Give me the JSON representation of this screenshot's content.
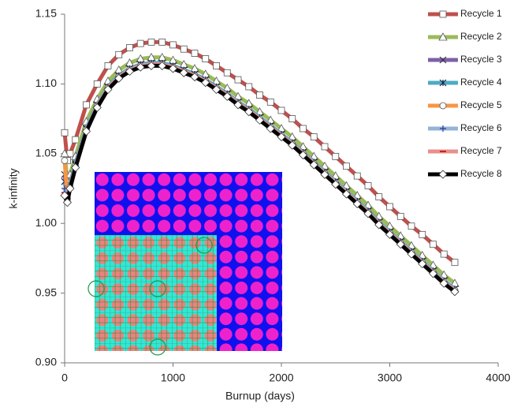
{
  "chart_data": {
    "type": "line",
    "xlabel": "Burnup (days)",
    "ylabel": "k-infinity",
    "x": [
      0,
      25,
      50,
      100,
      200,
      300,
      400,
      500,
      600,
      700,
      800,
      900,
      1000,
      1100,
      1200,
      1300,
      1400,
      1500,
      1600,
      1700,
      1800,
      1900,
      2000,
      2100,
      2200,
      2300,
      2400,
      2500,
      2600,
      2700,
      2800,
      2900,
      3000,
      3100,
      3200,
      3300,
      3400,
      3500,
      3600
    ],
    "xlim": [
      0,
      4000
    ],
    "xticks": [
      0,
      1000,
      2000,
      3000,
      4000
    ],
    "ylim": [
      0.9,
      1.15
    ],
    "yticks": [
      {
        "value": 0.9,
        "label": "0.90"
      },
      0.95,
      {
        "value": 1.0,
        "label": "1.00"
      },
      1.05,
      {
        "value": 1.1,
        "label": "1.10"
      },
      1.15
    ],
    "grid": false,
    "legend": "right",
    "series": [
      {
        "name": "Recycle 1",
        "color": "#c0504d",
        "marker": "square",
        "values": [
          1.065,
          1.045,
          1.05,
          1.06,
          1.085,
          1.1,
          1.113,
          1.121,
          1.126,
          1.129,
          1.13,
          1.13,
          1.128,
          1.125,
          1.122,
          1.118,
          1.113,
          1.108,
          1.103,
          1.098,
          1.092,
          1.087,
          1.081,
          1.075,
          1.068,
          1.062,
          1.055,
          1.048,
          1.041,
          1.034,
          1.027,
          1.019,
          1.012,
          1.005,
          0.998,
          0.992,
          0.985,
          0.978,
          0.972
        ]
      },
      {
        "name": "Recycle 2",
        "color": "#9bbb59",
        "marker": "triangle",
        "values": [
          1.05,
          1.03,
          1.035,
          1.048,
          1.073,
          1.089,
          1.102,
          1.11,
          1.115,
          1.118,
          1.119,
          1.119,
          1.117,
          1.114,
          1.111,
          1.107,
          1.102,
          1.097,
          1.091,
          1.086,
          1.08,
          1.074,
          1.068,
          1.062,
          1.055,
          1.048,
          1.041,
          1.034,
          1.027,
          1.02,
          1.013,
          1.005,
          0.998,
          0.991,
          0.984,
          0.977,
          0.97,
          0.963,
          0.957
        ]
      },
      {
        "name": "Recycle 3",
        "color": "#7f5fa8",
        "marker": "x",
        "values": [
          1.035,
          1.02,
          1.028,
          1.043,
          1.068,
          1.085,
          1.098,
          1.106,
          1.111,
          1.114,
          1.115,
          1.115,
          1.113,
          1.11,
          1.107,
          1.103,
          1.098,
          1.093,
          1.087,
          1.082,
          1.076,
          1.07,
          1.064,
          1.058,
          1.051,
          1.044,
          1.037,
          1.03,
          1.023,
          1.016,
          1.009,
          1.001,
          0.994,
          0.987,
          0.98,
          0.973,
          0.966,
          0.959,
          0.953
        ]
      },
      {
        "name": "Recycle 4",
        "color": "#4bacc6",
        "marker": "star",
        "values": [
          1.03,
          1.019,
          1.027,
          1.042,
          1.068,
          1.085,
          1.098,
          1.106,
          1.111,
          1.114,
          1.115,
          1.115,
          1.113,
          1.11,
          1.107,
          1.103,
          1.098,
          1.093,
          1.087,
          1.082,
          1.076,
          1.07,
          1.064,
          1.058,
          1.051,
          1.044,
          1.037,
          1.03,
          1.023,
          1.016,
          1.009,
          1.001,
          0.994,
          0.987,
          0.98,
          0.973,
          0.966,
          0.959,
          0.953
        ]
      },
      {
        "name": "Recycle 5",
        "color": "#f79646",
        "marker": "circle",
        "values": [
          1.045,
          1.018,
          1.026,
          1.041,
          1.067,
          1.084,
          1.097,
          1.105,
          1.11,
          1.113,
          1.114,
          1.114,
          1.112,
          1.109,
          1.106,
          1.102,
          1.097,
          1.092,
          1.086,
          1.081,
          1.075,
          1.069,
          1.063,
          1.057,
          1.05,
          1.043,
          1.036,
          1.029,
          1.022,
          1.015,
          1.008,
          1.0,
          0.993,
          0.986,
          0.979,
          0.972,
          0.965,
          0.958,
          0.952
        ]
      },
      {
        "name": "Recycle 6",
        "color": "#95b3d7",
        "marker": "plus",
        "values": [
          1.025,
          1.017,
          1.026,
          1.041,
          1.067,
          1.084,
          1.097,
          1.105,
          1.11,
          1.113,
          1.114,
          1.114,
          1.112,
          1.109,
          1.106,
          1.102,
          1.097,
          1.092,
          1.086,
          1.081,
          1.075,
          1.069,
          1.063,
          1.057,
          1.05,
          1.043,
          1.036,
          1.029,
          1.022,
          1.015,
          1.008,
          1.0,
          0.993,
          0.986,
          0.979,
          0.972,
          0.965,
          0.958,
          0.952
        ]
      },
      {
        "name": "Recycle 7",
        "color": "#e8908c",
        "marker": "dash",
        "values": [
          1.022,
          1.016,
          1.025,
          1.04,
          1.066,
          1.084,
          1.097,
          1.105,
          1.11,
          1.113,
          1.114,
          1.114,
          1.112,
          1.109,
          1.106,
          1.102,
          1.097,
          1.092,
          1.086,
          1.081,
          1.075,
          1.069,
          1.063,
          1.057,
          1.05,
          1.043,
          1.036,
          1.029,
          1.022,
          1.015,
          1.008,
          1.0,
          0.993,
          0.986,
          0.979,
          0.972,
          0.965,
          0.958,
          0.952
        ]
      },
      {
        "name": "Recycle 8",
        "color": "#000000",
        "marker": "diamond",
        "values": [
          1.02,
          1.015,
          1.025,
          1.04,
          1.066,
          1.083,
          1.096,
          1.104,
          1.109,
          1.112,
          1.113,
          1.113,
          1.111,
          1.108,
          1.105,
          1.101,
          1.096,
          1.091,
          1.085,
          1.08,
          1.074,
          1.068,
          1.062,
          1.056,
          1.049,
          1.042,
          1.035,
          1.028,
          1.021,
          1.014,
          1.007,
          0.999,
          0.992,
          0.985,
          0.978,
          0.971,
          0.964,
          0.957,
          0.951
        ]
      }
    ]
  }
}
